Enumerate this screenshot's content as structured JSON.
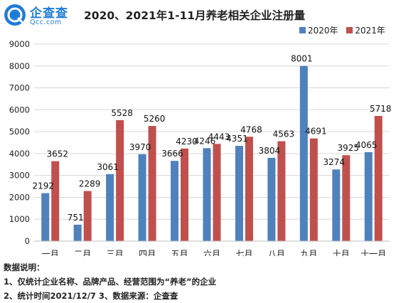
{
  "header": {
    "logo_name": "企查查",
    "logo_domain": "Qcc.com",
    "title": "2020、2021年1-11月养老相关企业注册量"
  },
  "colors": {
    "series_2020": "#4f81bd",
    "series_2021": "#c0504d",
    "brand": "#1f7bd8"
  },
  "chart_data": {
    "type": "bar",
    "title": "2020、2021年1-11月养老相关企业注册量",
    "xlabel": "",
    "ylabel": "",
    "categories": [
      "一月",
      "二月",
      "三月",
      "四月",
      "五月",
      "六月",
      "七月",
      "八月",
      "九月",
      "十月",
      "十一月"
    ],
    "series": [
      {
        "name": "2020年",
        "color": "#4f81bd",
        "values": [
          2192,
          751,
          3061,
          3970,
          3666,
          4246,
          4351,
          3804,
          8001,
          3274,
          4065
        ]
      },
      {
        "name": "2021年",
        "color": "#c0504d",
        "values": [
          3652,
          2289,
          5528,
          5260,
          4230,
          4443,
          4768,
          4563,
          4691,
          3925,
          5718
        ]
      }
    ],
    "ylim": [
      0,
      9000
    ],
    "yticks": [
      0,
      1000,
      2000,
      3000,
      4000,
      5000,
      6000,
      7000,
      8000,
      9000
    ],
    "grid": true,
    "legend_position": "top-right"
  },
  "footer": {
    "heading": "数据说明：",
    "line1": "1、仅统计企业名称、品牌产品、经营范围为“养老”的企业",
    "line2": "2、统计时间2021/12/7   3、数据来源：企查查"
  }
}
